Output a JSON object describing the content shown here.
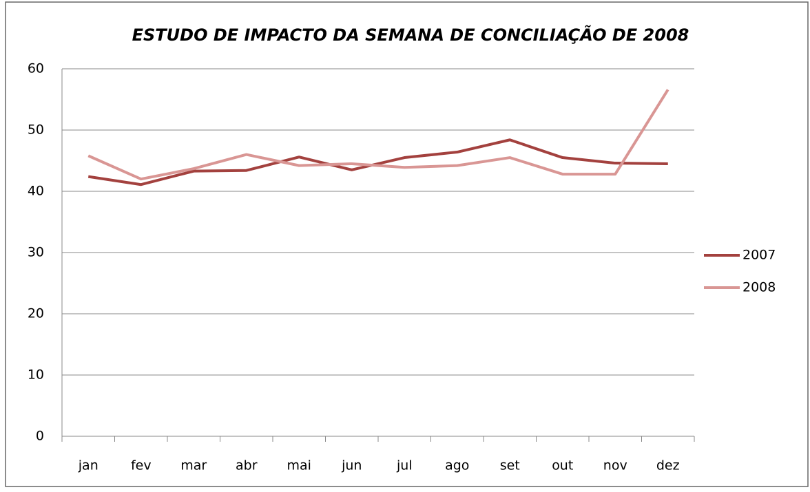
{
  "chart_data": {
    "type": "line",
    "title": "ESTUDO DE IMPACTO DA SEMANA DE CONCILIAÇÃO DE 2008",
    "categories": [
      "jan",
      "fev",
      "mar",
      "abr",
      "mai",
      "jun",
      "jul",
      "ago",
      "set",
      "out",
      "nov",
      "dez"
    ],
    "series": [
      {
        "name": "2007",
        "color": "#a3413e",
        "values": [
          42.4,
          41.1,
          43.3,
          43.4,
          45.6,
          43.5,
          45.5,
          46.4,
          48.4,
          45.5,
          44.6,
          44.5
        ]
      },
      {
        "name": "2008",
        "color": "#d99694",
        "values": [
          45.8,
          42.0,
          43.7,
          46.0,
          44.2,
          44.5,
          43.9,
          44.2,
          45.5,
          42.8,
          42.8,
          56.6
        ]
      }
    ],
    "ylim": [
      0,
      60
    ],
    "yticks": [
      0,
      10,
      20,
      30,
      40,
      50,
      60
    ],
    "grid": true,
    "legend": "right"
  }
}
